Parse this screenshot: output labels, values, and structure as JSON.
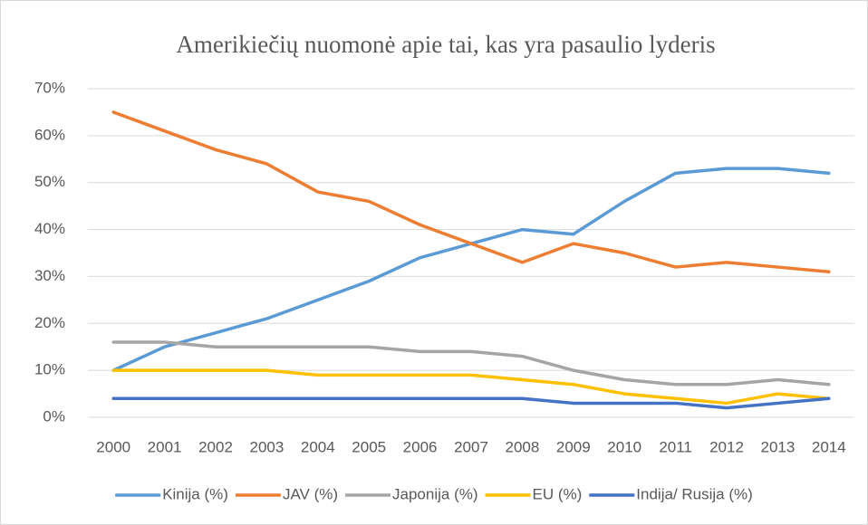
{
  "chart_data": {
    "type": "line",
    "title": "Amerikiečių nuomonė apie tai, kas yra pasaulio lyderis",
    "categories": [
      "2000",
      "2001",
      "2002",
      "2003",
      "2004",
      "2005",
      "2006",
      "2007",
      "2008",
      "2009",
      "2010",
      "2011",
      "2012",
      "2013",
      "2014"
    ],
    "series": [
      {
        "name": "Kinija (%)",
        "color": "#5b9bd5",
        "values": [
          10,
          15,
          18,
          21,
          25,
          29,
          34,
          37,
          40,
          39,
          46,
          52,
          53,
          53,
          52
        ]
      },
      {
        "name": "JAV (%)",
        "color": "#ed7d31",
        "values": [
          65,
          61,
          57,
          54,
          48,
          46,
          41,
          37,
          33,
          37,
          35,
          32,
          33,
          32,
          31
        ]
      },
      {
        "name": "Japonija (%)",
        "color": "#a5a5a5",
        "values": [
          16,
          16,
          15,
          15,
          15,
          15,
          14,
          14,
          13,
          10,
          8,
          7,
          7,
          8,
          7
        ]
      },
      {
        "name": "EU (%)",
        "color": "#ffc000",
        "values": [
          10,
          10,
          10,
          10,
          9,
          9,
          9,
          9,
          8,
          7,
          5,
          4,
          3,
          5,
          4
        ]
      },
      {
        "name": "Indija/ Rusija (%)",
        "color": "#4472c4",
        "values": [
          4,
          4,
          4,
          4,
          4,
          4,
          4,
          4,
          4,
          3,
          3,
          3,
          2,
          3,
          4
        ]
      }
    ],
    "ylim": [
      0,
      70
    ],
    "yticks": [
      {
        "value": 0,
        "label": "0%"
      },
      {
        "value": 10,
        "label": "10%"
      },
      {
        "value": 20,
        "label": "20%"
      },
      {
        "value": 30,
        "label": "30%"
      },
      {
        "value": 40,
        "label": "40%"
      },
      {
        "value": 50,
        "label": "50%"
      },
      {
        "value": 60,
        "label": "60%"
      },
      {
        "value": 70,
        "label": "70%"
      }
    ],
    "grid": true,
    "legend": "bottom"
  }
}
